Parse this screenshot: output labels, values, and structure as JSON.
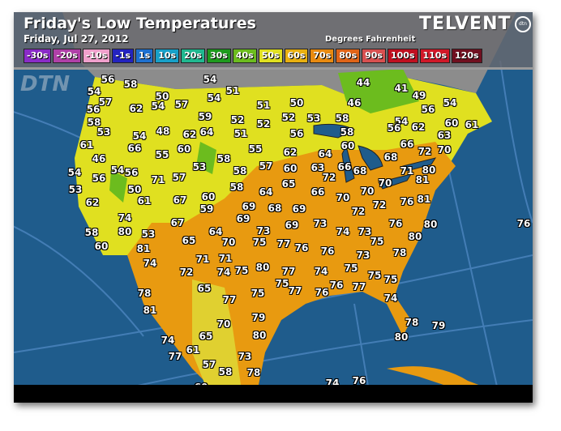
{
  "header": {
    "title": "Friday's Low Temperatures",
    "date": "Friday, Jul 27, 2012",
    "units": "Degrees Fahrenheit",
    "brand": "TELVENT",
    "brand_mark": "dtn",
    "watermark": "DTN"
  },
  "legend": [
    {
      "label": "-30s",
      "color": "#8a2bc8"
    },
    {
      "label": "-20s",
      "color": "#b040a8"
    },
    {
      "label": "-10s",
      "color": "#f0a0cc"
    },
    {
      "label": "-1s",
      "color": "#2424c0"
    },
    {
      "label": "1s",
      "color": "#1e70d0"
    },
    {
      "label": "10s",
      "color": "#18a0c8"
    },
    {
      "label": "20s",
      "color": "#20b890"
    },
    {
      "label": "30s",
      "color": "#1e9a1e"
    },
    {
      "label": "40s",
      "color": "#6cbc1e"
    },
    {
      "label": "50s",
      "color": "#e0e020"
    },
    {
      "label": "60s",
      "color": "#e8b010"
    },
    {
      "label": "70s",
      "color": "#e88a10"
    },
    {
      "label": "80s",
      "color": "#e06418"
    },
    {
      "label": "90s",
      "color": "#d85050"
    },
    {
      "label": "100s",
      "color": "#c01020"
    },
    {
      "label": "110s",
      "color": "#d01828"
    },
    {
      "label": "120s",
      "color": "#701020"
    }
  ],
  "colors": {
    "ocean": "#1f5c8c",
    "canada": "#8c8c8c",
    "cool": "#e0e020",
    "warm": "#e89a10",
    "green": "#6cbc1e"
  },
  "temperatures": [
    56,
    58,
    54,
    57,
    56,
    62,
    50,
    54,
    57,
    58,
    53,
    54,
    48,
    66,
    61,
    46,
    55,
    54,
    56,
    54,
    56,
    53,
    50,
    71,
    61,
    62,
    74,
    80,
    53,
    58,
    60,
    81,
    74,
    78,
    81,
    74,
    77,
    61,
    57,
    58,
    60,
    57,
    73,
    78,
    65,
    70,
    80,
    79,
    75,
    77,
    65,
    72,
    71,
    71,
    74,
    75,
    80,
    77,
    75,
    77,
    76,
    74,
    76,
    76,
    77,
    75,
    70,
    65,
    64,
    67,
    60,
    59,
    67,
    57,
    53,
    60,
    58,
    58,
    57,
    58,
    64,
    69,
    69,
    68,
    73,
    69,
    54,
    54,
    51,
    59,
    62,
    64,
    52,
    51,
    51,
    52,
    55,
    50,
    52,
    53,
    56,
    58,
    58,
    62,
    64,
    60,
    63,
    66,
    65,
    60,
    72,
    68,
    66,
    70,
    70,
    69,
    73,
    72,
    72,
    74,
    73,
    75,
    78,
    73,
    75,
    75,
    77,
    76,
    75,
    74,
    78,
    79,
    80,
    74,
    76,
    82,
    78,
    44,
    41,
    49,
    46,
    54,
    56,
    60,
    61,
    54,
    56,
    62,
    63,
    66,
    72,
    70,
    68,
    71,
    80,
    81,
    70,
    76,
    81,
    76,
    80,
    80,
    76
  ]
}
